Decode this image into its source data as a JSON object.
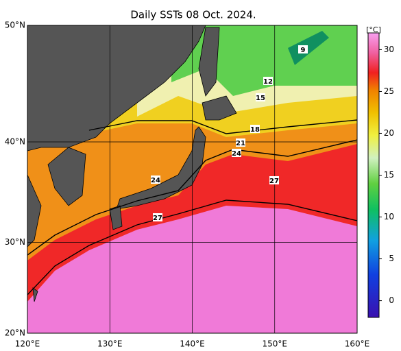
{
  "title": "Daily SSTs 08 Oct. 2024.",
  "map": {
    "lon_range": [
      120,
      160
    ],
    "lat_range": [
      20,
      50
    ],
    "lon_ticks": [
      {
        "value": 120,
        "label": "120°E"
      },
      {
        "value": 130,
        "label": "130°E"
      },
      {
        "value": 140,
        "label": "140°E"
      },
      {
        "value": 150,
        "label": "150°E"
      },
      {
        "value": 160,
        "label": "160°E"
      }
    ],
    "lat_ticks": [
      {
        "value": 50,
        "label": "50°N"
      },
      {
        "value": 40,
        "label": "40°N"
      },
      {
        "value": 30,
        "label": "30°N"
      },
      {
        "value": 20,
        "label": "20°N"
      }
    ],
    "contour_labels": [
      "9",
      "12",
      "15",
      "18",
      "21",
      "24",
      "24",
      "27",
      "27"
    ]
  },
  "colorbar": {
    "unit": "[°C]",
    "range": [
      -2,
      32
    ],
    "ticks": [
      30,
      25,
      20,
      15,
      10,
      5,
      0
    ]
  }
}
